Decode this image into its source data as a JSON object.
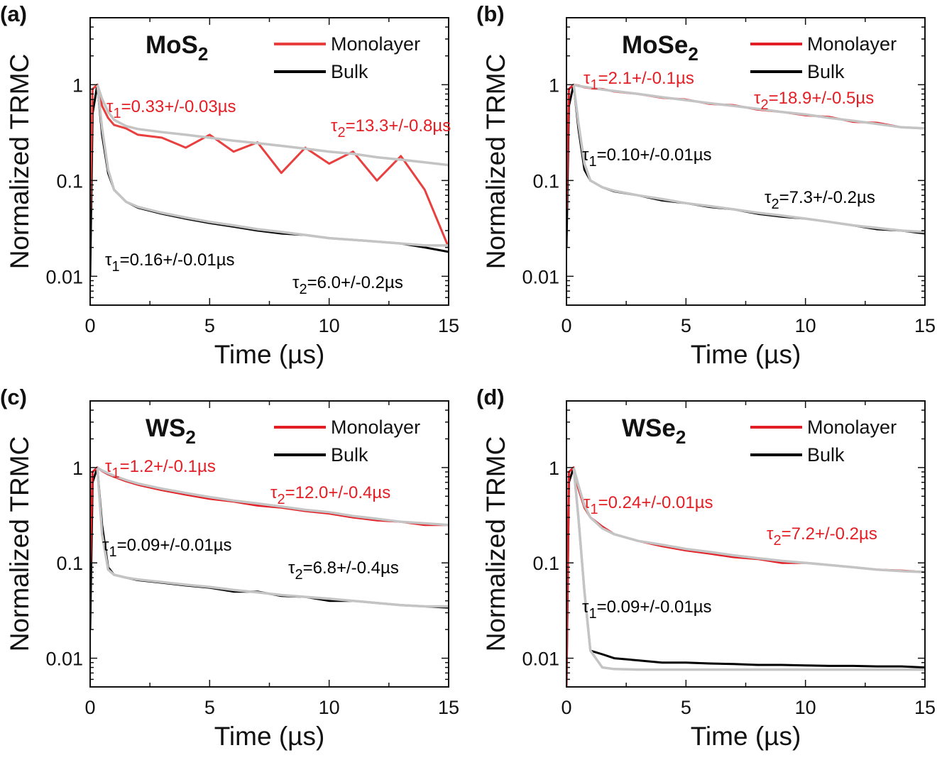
{
  "colors": {
    "monolayer": "#e31e24",
    "monolayer_a": "#e8403f",
    "bulk": "#000000",
    "fit": "#c4c4c4"
  },
  "chart_data": [
    {
      "type": "line",
      "panel_label": "(a)",
      "title": "MoS",
      "title_sub": "2",
      "xlabel": "Time (µs)",
      "ylabel": "Normalized TRMC",
      "xlim": [
        0,
        15
      ],
      "ylim": [
        0.005,
        5
      ],
      "yscale": "log",
      "xticks": [
        "0",
        "5",
        "10",
        "15"
      ],
      "yticks": [
        "0.01",
        "0.1",
        "1"
      ],
      "legend": {
        "placement": "top-right",
        "items": [
          "Monolayer",
          "Bulk"
        ]
      },
      "x": [
        0,
        0.1,
        0.3,
        0.5,
        0.75,
        1,
        1.5,
        2,
        3,
        4,
        5,
        6,
        7,
        8,
        9,
        10,
        11,
        12,
        13,
        14,
        15
      ],
      "fit_x": [
        0.3,
        0.5,
        0.75,
        1,
        1.5,
        2,
        3,
        4,
        5,
        6,
        7,
        8,
        9,
        10,
        11,
        12,
        13,
        14,
        15
      ],
      "series": [
        {
          "name": "Monolayer",
          "values": [
            0.05,
            0.9,
            1.0,
            0.6,
            0.45,
            0.38,
            0.35,
            0.3,
            0.28,
            0.22,
            0.3,
            0.2,
            0.25,
            0.12,
            0.22,
            0.15,
            0.2,
            0.1,
            0.18,
            0.08,
            0.02
          ],
          "fit": [
            1.0,
            0.71,
            0.52,
            0.43,
            0.37,
            0.345,
            0.32,
            0.3,
            0.28,
            0.26,
            0.245,
            0.23,
            0.215,
            0.2,
            0.19,
            0.175,
            0.165,
            0.155,
            0.145
          ]
        },
        {
          "name": "Bulk",
          "values": [
            0.01,
            0.5,
            1.0,
            0.3,
            0.12,
            0.08,
            0.06,
            0.052,
            0.045,
            0.04,
            0.036,
            0.033,
            0.03,
            0.028,
            0.027,
            0.025,
            0.024,
            0.023,
            0.022,
            0.02,
            0.018
          ],
          "fit": [
            1.0,
            0.35,
            0.13,
            0.08,
            0.06,
            0.053,
            0.046,
            0.041,
            0.037,
            0.034,
            0.031,
            0.029,
            0.027,
            0.025,
            0.024,
            0.023,
            0.022,
            0.021,
            0.021
          ]
        }
      ],
      "annotations": [
        {
          "series": "Monolayer",
          "sym": "τ",
          "sub": "1",
          "text": "=0.33+/-0.03µs"
        },
        {
          "series": "Monolayer",
          "sym": "τ",
          "sub": "2",
          "text": "=13.3+/-0.8µs"
        },
        {
          "series": "Bulk",
          "sym": "τ",
          "sub": "1",
          "text": "=0.16+/-0.01µs"
        },
        {
          "series": "Bulk",
          "sym": "τ",
          "sub": "2",
          "text": "=6.0+/-0.2µs"
        }
      ]
    },
    {
      "type": "line",
      "panel_label": "(b)",
      "title": "MoSe",
      "title_sub": "2",
      "xlabel": "Time (µs)",
      "ylabel": "Normalized TRMC",
      "xlim": [
        0,
        15
      ],
      "ylim": [
        0.005,
        5
      ],
      "yscale": "log",
      "xticks": [
        "0",
        "5",
        "10",
        "15"
      ],
      "yticks": [
        "0.01",
        "0.1",
        "1"
      ],
      "legend": {
        "placement": "top-right",
        "items": [
          "Monolayer",
          "Bulk"
        ]
      },
      "x": [
        0,
        0.1,
        0.3,
        0.5,
        0.75,
        1,
        1.5,
        2,
        3,
        4,
        5,
        6,
        7,
        8,
        9,
        10,
        11,
        12,
        13,
        14,
        15
      ],
      "fit_x": [
        0.3,
        0.5,
        0.75,
        1,
        1.5,
        2,
        3,
        4,
        5,
        6,
        7,
        8,
        9,
        10,
        11,
        12,
        13,
        14,
        15
      ],
      "series": [
        {
          "name": "Monolayer",
          "values": [
            0.05,
            0.9,
            1.0,
            0.98,
            0.94,
            0.92,
            0.9,
            0.85,
            0.8,
            0.73,
            0.7,
            0.63,
            0.61,
            0.55,
            0.52,
            0.48,
            0.46,
            0.41,
            0.4,
            0.36,
            0.35
          ],
          "fit": [
            1.0,
            0.97,
            0.95,
            0.93,
            0.89,
            0.86,
            0.8,
            0.74,
            0.69,
            0.64,
            0.6,
            0.56,
            0.52,
            0.49,
            0.45,
            0.42,
            0.39,
            0.36,
            0.35
          ]
        },
        {
          "name": "Bulk",
          "values": [
            0.02,
            0.6,
            1.0,
            0.35,
            0.13,
            0.1,
            0.085,
            0.077,
            0.07,
            0.062,
            0.058,
            0.053,
            0.05,
            0.045,
            0.042,
            0.04,
            0.037,
            0.034,
            0.031,
            0.03,
            0.028
          ],
          "fit": [
            1.0,
            0.4,
            0.15,
            0.1,
            0.085,
            0.078,
            0.07,
            0.064,
            0.058,
            0.054,
            0.05,
            0.046,
            0.043,
            0.04,
            0.037,
            0.034,
            0.032,
            0.03,
            0.029
          ]
        }
      ],
      "annotations": [
        {
          "series": "Monolayer",
          "sym": "τ",
          "sub": "1",
          "text": "=2.1+/-0.1µs"
        },
        {
          "series": "Monolayer",
          "sym": "τ",
          "sub": "2",
          "text": "=18.9+/-0.5µs"
        },
        {
          "series": "Bulk",
          "sym": "τ",
          "sub": "1",
          "text": "=0.10+/-0.01µs"
        },
        {
          "series": "Bulk",
          "sym": "τ",
          "sub": "2",
          "text": "=7.3+/-0.2µs"
        }
      ]
    },
    {
      "type": "line",
      "panel_label": "(c)",
      "title": "WS",
      "title_sub": "2",
      "xlabel": "Time (µs)",
      "ylabel": "Normalized TRMC",
      "xlim": [
        0,
        15
      ],
      "ylim": [
        0.005,
        5
      ],
      "yscale": "log",
      "xticks": [
        "0",
        "5",
        "10",
        "15"
      ],
      "yticks": [
        "0.01",
        "0.1",
        "1"
      ],
      "legend": {
        "placement": "top-right",
        "items": [
          "Monolayer",
          "Bulk"
        ]
      },
      "x": [
        0,
        0.1,
        0.3,
        0.5,
        0.75,
        1,
        1.5,
        2,
        3,
        4,
        5,
        6,
        7,
        8,
        9,
        10,
        11,
        12,
        13,
        14,
        15
      ],
      "fit_x": [
        0.3,
        0.5,
        0.75,
        1,
        1.5,
        2,
        3,
        4,
        5,
        6,
        7,
        8,
        9,
        10,
        11,
        12,
        13,
        14,
        15
      ],
      "series": [
        {
          "name": "Monolayer",
          "values": [
            0.1,
            0.9,
            1.0,
            0.92,
            0.85,
            0.8,
            0.72,
            0.66,
            0.58,
            0.52,
            0.47,
            0.44,
            0.4,
            0.38,
            0.35,
            0.33,
            0.3,
            0.28,
            0.27,
            0.25,
            0.25
          ],
          "fit": [
            1.0,
            0.93,
            0.87,
            0.82,
            0.74,
            0.68,
            0.6,
            0.54,
            0.49,
            0.45,
            0.42,
            0.39,
            0.36,
            0.34,
            0.31,
            0.29,
            0.27,
            0.26,
            0.25
          ]
        },
        {
          "name": "Bulk",
          "values": [
            0.02,
            0.7,
            1.0,
            0.25,
            0.09,
            0.075,
            0.07,
            0.066,
            0.062,
            0.058,
            0.055,
            0.05,
            0.05,
            0.045,
            0.044,
            0.04,
            0.04,
            0.038,
            0.036,
            0.035,
            0.034
          ],
          "fit": [
            1.0,
            0.2,
            0.085,
            0.075,
            0.07,
            0.067,
            0.063,
            0.059,
            0.056,
            0.052,
            0.049,
            0.046,
            0.044,
            0.042,
            0.04,
            0.038,
            0.036,
            0.035,
            0.035
          ]
        }
      ],
      "annotations": [
        {
          "series": "Monolayer",
          "sym": "τ",
          "sub": "1",
          "text": "=1.2+/-0.1µs"
        },
        {
          "series": "Monolayer",
          "sym": "τ",
          "sub": "2",
          "text": "=12.0+/-0.4µs"
        },
        {
          "series": "Bulk",
          "sym": "τ",
          "sub": "1",
          "text": "=0.09+/-0.01µs"
        },
        {
          "series": "Bulk",
          "sym": "τ",
          "sub": "2",
          "text": "=6.8+/-0.4µs"
        }
      ]
    },
    {
      "type": "line",
      "panel_label": "(d)",
      "title": "WSe",
      "title_sub": "2",
      "xlabel": "Time (µs)",
      "ylabel": "Normalized TRMC",
      "xlim": [
        0,
        15
      ],
      "ylim": [
        0.005,
        5
      ],
      "yscale": "log",
      "xticks": [
        "0",
        "5",
        "10",
        "15"
      ],
      "yticks": [
        "0.01",
        "0.1",
        "1"
      ],
      "legend": {
        "placement": "top-right",
        "items": [
          "Monolayer",
          "Bulk"
        ]
      },
      "x": [
        0,
        0.1,
        0.3,
        0.5,
        0.75,
        1,
        1.5,
        2,
        3,
        4,
        5,
        6,
        7,
        8,
        9,
        10,
        11,
        12,
        13,
        14,
        15
      ],
      "fit_x": [
        0.3,
        0.5,
        0.75,
        1,
        1.5,
        2,
        3,
        4,
        5,
        6,
        7,
        8,
        9,
        10,
        11,
        12,
        13,
        14,
        15
      ],
      "series": [
        {
          "name": "Monolayer",
          "values": [
            0.005,
            0.9,
            1.0,
            0.6,
            0.38,
            0.3,
            0.24,
            0.2,
            0.17,
            0.15,
            0.135,
            0.125,
            0.115,
            0.11,
            0.1,
            0.1,
            0.095,
            0.09,
            0.085,
            0.083,
            0.08
          ],
          "fit": [
            1.0,
            0.65,
            0.4,
            0.3,
            0.23,
            0.2,
            0.17,
            0.155,
            0.14,
            0.13,
            0.12,
            0.112,
            0.105,
            0.1,
            0.095,
            0.09,
            0.085,
            0.082,
            0.08
          ]
        },
        {
          "name": "Bulk",
          "values": [
            0.005,
            0.7,
            1.0,
            0.3,
            0.05,
            0.012,
            0.011,
            0.01,
            0.0095,
            0.009,
            0.009,
            0.0088,
            0.0087,
            0.0085,
            0.0085,
            0.0084,
            0.0083,
            0.0083,
            0.0082,
            0.0082,
            0.008
          ],
          "fit": [
            1.0,
            0.3,
            0.05,
            0.012,
            0.008,
            0.0077,
            0.0076,
            0.0076,
            0.0076,
            0.0076,
            0.0076,
            0.0076,
            0.0076,
            0.0076,
            0.0076,
            0.0076,
            0.0076,
            0.0076,
            0.0076
          ]
        }
      ],
      "annotations": [
        {
          "series": "Monolayer",
          "sym": "τ",
          "sub": "1",
          "text": "=0.24+/-0.01µs"
        },
        {
          "series": "Monolayer",
          "sym": "τ",
          "sub": "2",
          "text": "=7.2+/-0.2µs"
        },
        {
          "series": "Bulk",
          "sym": "τ",
          "sub": "1",
          "text": "=0.09+/-0.01µs"
        }
      ]
    }
  ]
}
